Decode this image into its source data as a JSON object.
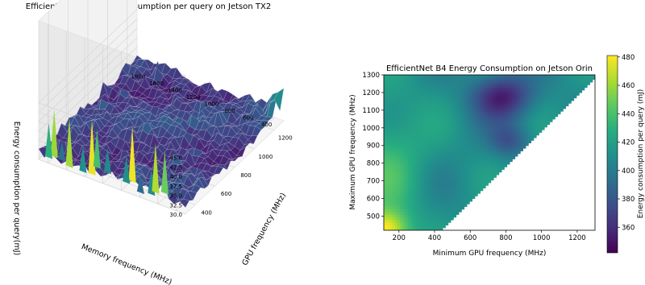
{
  "chart_data": [
    {
      "type": "surface3d",
      "title": "EfficientNet B4 energy consumption per query on Jetson TX2",
      "xlabel": "GPU frequency (MHz)",
      "ylabel": "Memory frequency (MHz)",
      "zlabel": "Energy consumption per query(mJ)",
      "x_ticks": [
        "400",
        "600",
        "800",
        "1000",
        "1200"
      ],
      "y_ticks": [
        "400",
        "600",
        "800",
        "1000",
        "1200",
        "1400",
        "1600",
        "1800"
      ],
      "z_ticks": [
        "30.0",
        "32.5",
        "35.0",
        "37.5",
        "40.0",
        "42.5",
        "45.0"
      ],
      "xlim": [
        300,
        1300
      ],
      "ylim": [
        300,
        1900
      ],
      "zlim": [
        30,
        46
      ],
      "colormap": "viridis",
      "surface_description": "Noisy surface mostly between 30 and 36 mJ with spikes up to ~46 mJ near the low-memory / high-GPU-frequency corner"
    },
    {
      "type": "heatmap",
      "title": "EfficientNet B4 Energy Consumption on Jetson Orin",
      "xlabel": "Minimum GPU frequency (MHz)",
      "ylabel": "Maximum GPU frequency (MHz)",
      "x_ticks": [
        "200",
        "400",
        "600",
        "800",
        "1000",
        "1200"
      ],
      "y_ticks": [
        "500",
        "600",
        "700",
        "800",
        "900",
        "1000",
        "1100",
        "1200",
        "1300"
      ],
      "xlim": [
        115,
        1300
      ],
      "ylim": [
        420,
        1300
      ],
      "colormap": "viridis",
      "colorbar_label": "Energy consumption per query (mJ)",
      "colorbar_ticks": [
        "360",
        "380",
        "400",
        "420",
        "440",
        "460",
        "480"
      ],
      "colorbar_range": [
        342,
        481
      ],
      "valid_region": "max_gpu >= min_gpu",
      "value_description": "Highest (~480) at lowest min/max frequency corner; lowest (~345) around min 700-900 MHz, max 1100-1250 MHz"
    }
  ]
}
